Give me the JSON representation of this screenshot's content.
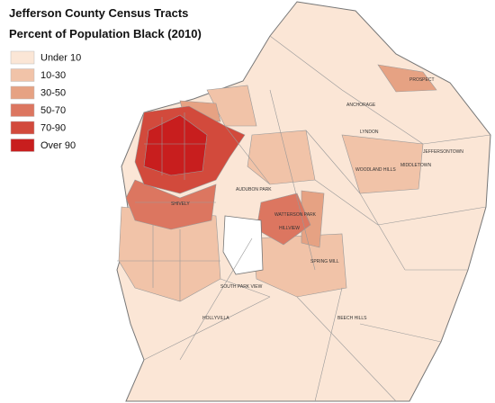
{
  "legend": {
    "title": "Jefferson County Census Tracts",
    "subtitle": "Percent of Population Black (2010)",
    "items": [
      {
        "label": "Under 10",
        "color": "#fbe6d6"
      },
      {
        "label": "10-30",
        "color": "#f1c3a8"
      },
      {
        "label": "30-50",
        "color": "#e6a283"
      },
      {
        "label": "50-70",
        "color": "#dc7660"
      },
      {
        "label": "70-90",
        "color": "#d24a3c"
      },
      {
        "label": "Over 90",
        "color": "#c81e1e"
      }
    ]
  },
  "places": [
    "PROSPECT",
    "ANCHORAGE",
    "LYNDON",
    "MIDDLETOWN",
    "JEFFERSONTOWN",
    "SHIVELY",
    "AUDUBON PARK",
    "WATTERSON PARK",
    "SPRING MILL",
    "HILLVIEW",
    "BEECH HILLS",
    "SOUTH PARK VIEW",
    "HOLLYVILLA",
    "WOODLAND HILLS"
  ]
}
